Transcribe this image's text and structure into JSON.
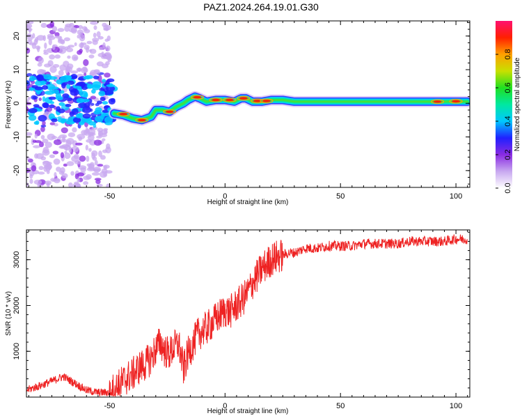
{
  "title": "PAZ1.2024.264.19.01.G30",
  "chart_data": [
    {
      "type": "heatmap",
      "xlabel": "Height of straight line (km)",
      "ylabel": "Frequency (Hz)",
      "xlim": [
        -86,
        106
      ],
      "ylim": [
        -25,
        24.5
      ],
      "xticks": [
        "-50",
        "0",
        "50",
        "100"
      ],
      "yticks": [
        "-20",
        "-10",
        "0",
        "10",
        "20"
      ],
      "colorbar": {
        "label": "Normalized spectral amplitude",
        "range": [
          0,
          1
        ],
        "ticks": [
          "0.0",
          "0.2",
          "0.4",
          "0.6",
          "0.8"
        ],
        "colors": [
          "#ffffff",
          "#c8a8f0",
          "#8a2be2",
          "#2020ff",
          "#00c8ff",
          "#00e8a0",
          "#20e020",
          "#c8e000",
          "#ffa000",
          "#ff2000",
          "#ff1070"
        ]
      },
      "ridge": {
        "x": [
          -48,
          -44,
          -40,
          -36,
          -32,
          -30,
          -27,
          -24,
          -21,
          -18,
          -16,
          -13,
          -11,
          -8,
          -4,
          0,
          4,
          7,
          9,
          12,
          16,
          20,
          25,
          30,
          40,
          50,
          60,
          70,
          80,
          90,
          100,
          105
        ],
        "y": [
          -3,
          -3.5,
          -4.5,
          -5,
          -4,
          -2,
          -2,
          -2.5,
          -1,
          0,
          1,
          2,
          1.5,
          0.5,
          1,
          1,
          0.5,
          1.5,
          1.5,
          0.5,
          0.5,
          1,
          1,
          0.5,
          0.5,
          0.5,
          0.5,
          0.5,
          0.5,
          0.5,
          0.5,
          0.5
        ]
      },
      "noise_region_x": [
        -86,
        -50
      ]
    },
    {
      "type": "line",
      "xlabel": "Height of straight line (km)",
      "ylabel": "SNR (10 * v/v)",
      "xlim": [
        -86,
        106
      ],
      "ylim": [
        0,
        3650
      ],
      "xticks": [
        "-50",
        "0",
        "50",
        "100"
      ],
      "yticks": [
        "1000",
        "2000",
        "3000"
      ],
      "color": "#ee2222",
      "series": [
        {
          "x": [
            -86,
            -80,
            -75,
            -70,
            -65,
            -60,
            -55,
            -50,
            -47,
            -45,
            -43,
            -40,
            -37,
            -35,
            -32,
            -30,
            -28,
            -26,
            -24,
            -22,
            -20,
            -18,
            -16,
            -14,
            -12,
            -10,
            -8,
            -6,
            -4,
            -2,
            0,
            2,
            4,
            6,
            8,
            10,
            12,
            14,
            16,
            18,
            20,
            22,
            25,
            28,
            30,
            35,
            40,
            45,
            50,
            55,
            60,
            65,
            70,
            75,
            80,
            85,
            90,
            95,
            100,
            105
          ],
          "y": [
            150,
            250,
            350,
            450,
            300,
            150,
            100,
            100,
            200,
            300,
            400,
            500,
            650,
            700,
            850,
            1050,
            1200,
            1000,
            950,
            1100,
            1150,
            600,
            950,
            1150,
            1350,
            1450,
            1500,
            1600,
            1700,
            1800,
            1900,
            1850,
            1950,
            2050,
            2150,
            2300,
            2500,
            2650,
            2800,
            2900,
            3000,
            3050,
            3100,
            3150,
            3150,
            3250,
            3250,
            3300,
            3300,
            3300,
            3350,
            3350,
            3350,
            3350,
            3400,
            3400,
            3400,
            3400,
            3450,
            3450
          ]
        }
      ]
    }
  ]
}
